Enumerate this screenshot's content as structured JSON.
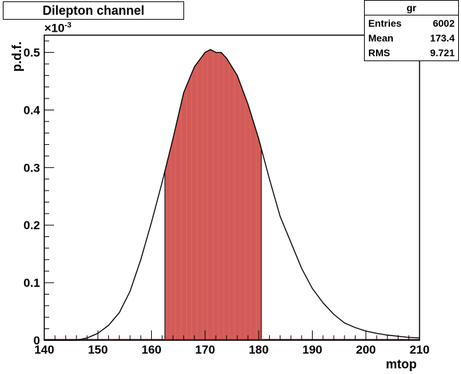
{
  "title": "Dilepton channel",
  "stats": {
    "name": "gr",
    "rows": [
      {
        "label": "Entries",
        "value": "6002"
      },
      {
        "label": "Mean",
        "value": "173.4"
      },
      {
        "label": "RMS",
        "value": "9.721"
      }
    ]
  },
  "axis_exponent": {
    "base": "×10",
    "power": "-3"
  },
  "colors": {
    "fill": "#d35b57",
    "line": "#000000",
    "baseline": "#b03030"
  },
  "chart_data": {
    "type": "area",
    "title": "Dilepton channel",
    "xlabel": "mtop",
    "ylabel": "p.d.f.",
    "xlim": [
      140,
      210
    ],
    "ylim": [
      0,
      0.53
    ],
    "y_scale_note": "×10^-3",
    "xticks": [
      140,
      150,
      160,
      170,
      180,
      190,
      200,
      210
    ],
    "yticks": [
      0,
      0.1,
      0.2,
      0.3,
      0.4,
      0.5
    ],
    "ytick_labels": [
      "0",
      "0.1",
      "0.2",
      "0.3",
      "0.4",
      "0.5"
    ],
    "shaded_range": [
      162.5,
      180.5
    ],
    "series": [
      {
        "x": [
          140,
          146,
          148,
          150,
          152,
          154,
          156,
          158,
          160,
          162,
          164,
          166,
          168,
          170,
          171,
          172,
          173,
          174,
          176,
          178,
          180,
          182,
          184,
          186,
          188,
          190,
          192,
          194,
          196,
          198,
          200,
          202,
          204,
          206,
          208,
          210
        ],
        "y": [
          0,
          0.0,
          0.004,
          0.012,
          0.026,
          0.048,
          0.085,
          0.14,
          0.205,
          0.275,
          0.35,
          0.43,
          0.475,
          0.5,
          0.505,
          0.5,
          0.5,
          0.49,
          0.46,
          0.41,
          0.35,
          0.28,
          0.215,
          0.17,
          0.125,
          0.09,
          0.065,
          0.045,
          0.03,
          0.022,
          0.016,
          0.012,
          0.009,
          0.007,
          0.005,
          0.004
        ]
      }
    ]
  }
}
